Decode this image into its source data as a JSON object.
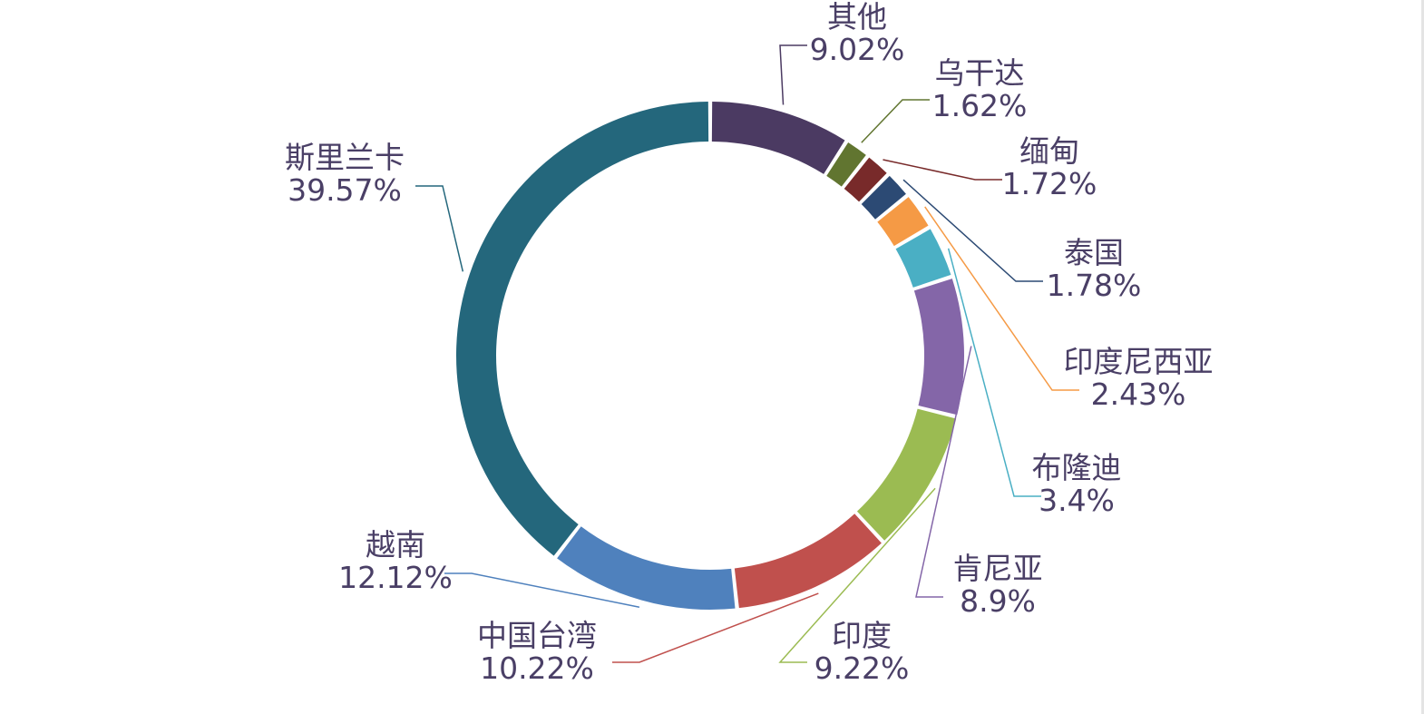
{
  "chart_data": {
    "type": "pie",
    "variant": "donut",
    "title": "",
    "start_angle_deg": 0,
    "direction": "clockwise",
    "series": [
      {
        "label": "其他",
        "value_text": "9.02%",
        "value": 9.02,
        "color": "#4b3a62",
        "side": "right"
      },
      {
        "label": "乌干达",
        "value_text": "1.62%",
        "value": 1.62,
        "color": "#617530",
        "side": "right"
      },
      {
        "label": "缅甸",
        "value_text": "1.72%",
        "value": 1.72,
        "color": "#782a2a",
        "side": "right"
      },
      {
        "label": "泰国",
        "value_text": "1.78%",
        "value": 1.78,
        "color": "#2c4a74",
        "side": "right"
      },
      {
        "label": "印度尼西亚",
        "value_text": "2.43%",
        "value": 2.43,
        "color": "#f59a45",
        "side": "right"
      },
      {
        "label": "布隆迪",
        "value_text": "3.4%",
        "value": 3.4,
        "color": "#4aafc4",
        "side": "right"
      },
      {
        "label": "肯尼亚",
        "value_text": "8.9%",
        "value": 8.9,
        "color": "#8466a8",
        "side": "right"
      },
      {
        "label": "印度",
        "value_text": "9.22%",
        "value": 9.22,
        "color": "#9bbb52",
        "side": "right"
      },
      {
        "label": "中国台湾",
        "value_text": "10.22%",
        "value": 10.22,
        "color": "#c0504d",
        "side": "left"
      },
      {
        "label": "越南",
        "value_text": "12.12%",
        "value": 12.12,
        "color": "#4f81bd",
        "side": "left"
      },
      {
        "label": "斯里兰卡",
        "value_text": "39.57%",
        "value": 39.57,
        "color": "#24677c",
        "side": "left"
      }
    ]
  }
}
